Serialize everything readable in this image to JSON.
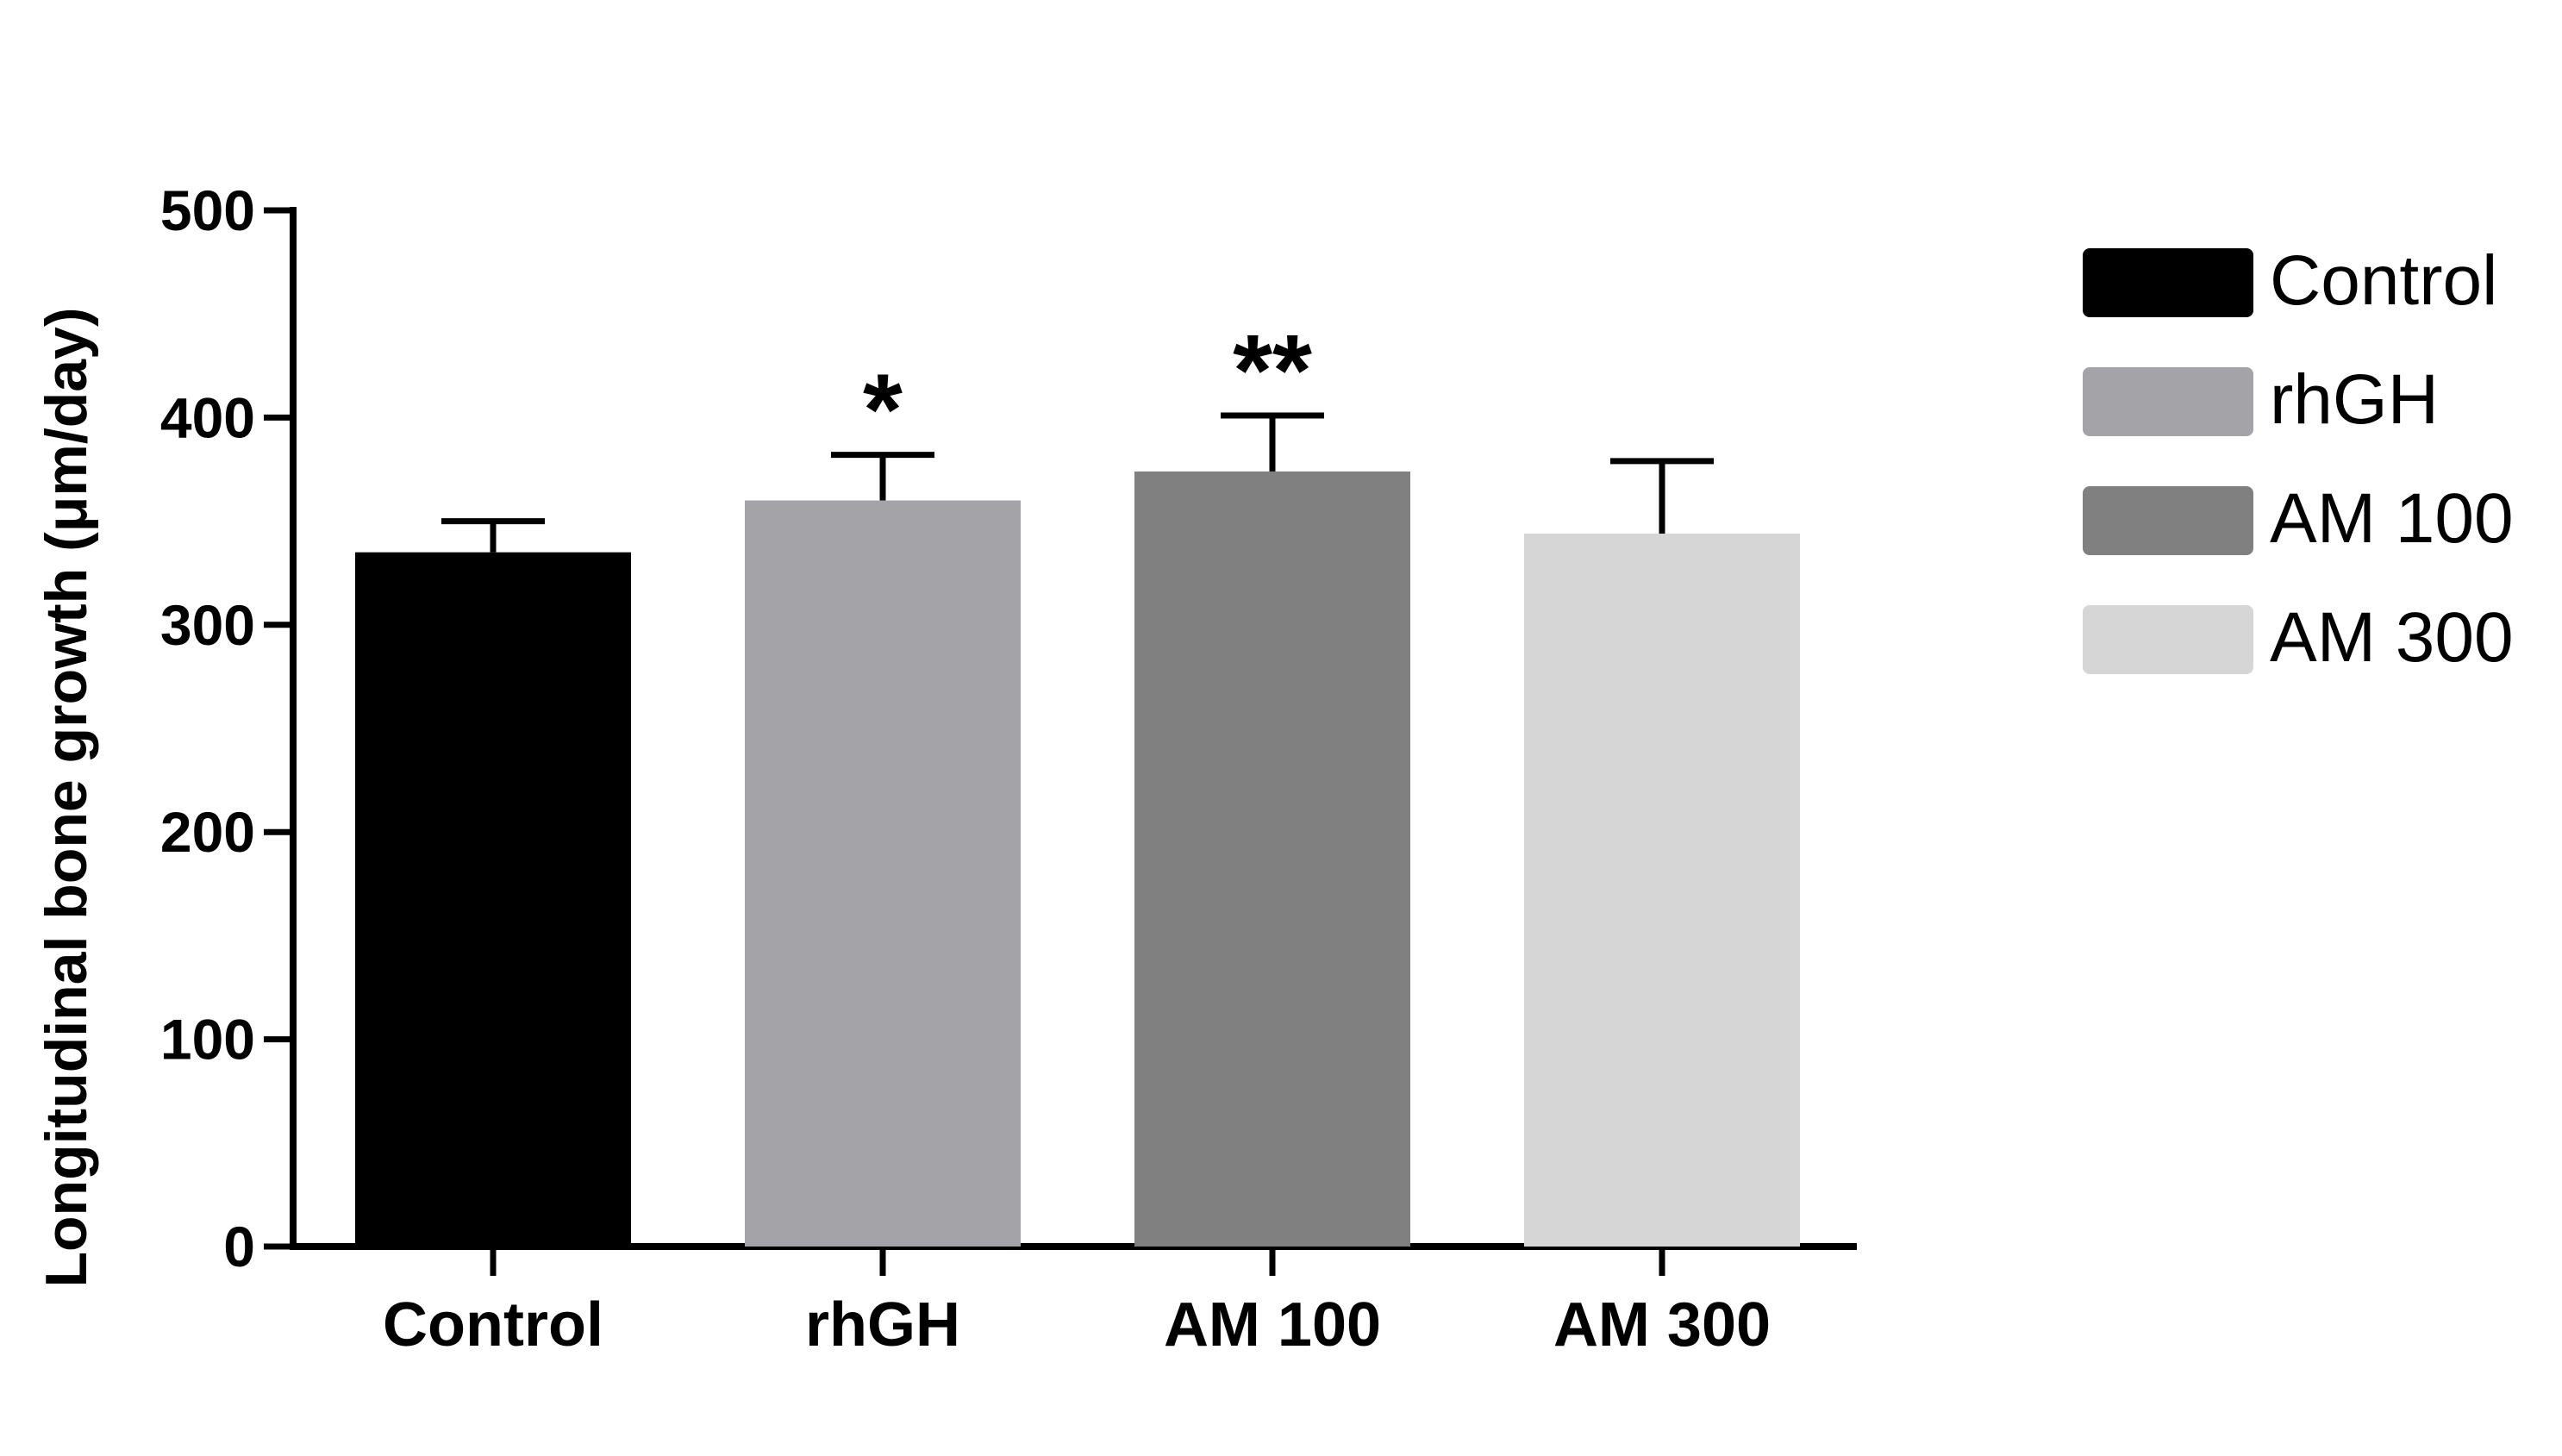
{
  "chart_data": {
    "type": "bar",
    "title": "",
    "xlabel": "",
    "ylabel": "Longitudinal bone growth (μm/day)",
    "categories": [
      "Control",
      "rhGH",
      "AM 100",
      "AM 300"
    ],
    "values": [
      335,
      360,
      374,
      344
    ],
    "error": [
      15,
      22,
      27,
      35
    ],
    "significance": [
      "",
      "*",
      "**",
      ""
    ],
    "colors": [
      "#000000",
      "#a3a3a8",
      "#808080",
      "#d6d6d6"
    ],
    "ylim": [
      0,
      500
    ],
    "yticks": [
      "0",
      "100",
      "200",
      "300",
      "400",
      "500"
    ],
    "grid": false,
    "legend": {
      "placement": "right",
      "entries": [
        "Control",
        "rhGH",
        "AM 100",
        "AM 300"
      ]
    }
  }
}
